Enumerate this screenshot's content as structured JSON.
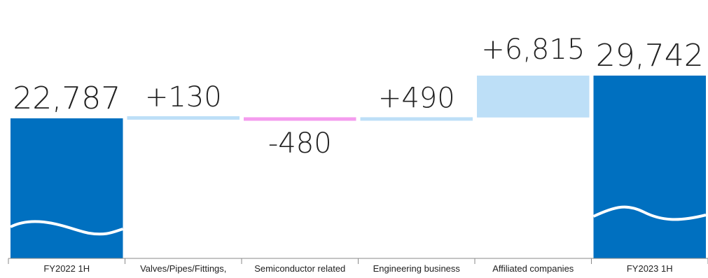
{
  "chart_data": {
    "type": "bar",
    "subtype": "waterfall",
    "title": "",
    "xlabel": "",
    "ylabel": "",
    "categories": [
      "FY2022 1H",
      "Valves/Pipes/Fittings,",
      "Semiconductor related",
      "Engineering business",
      "Affiliated companies",
      "FY2023 1H"
    ],
    "values": [
      22787,
      130,
      -480,
      490,
      6815,
      29742
    ],
    "value_labels": [
      "22,787",
      "+130",
      "-480",
      "+490",
      "+6,815",
      "29,742"
    ],
    "bar_kinds": [
      "total",
      "delta",
      "delta",
      "delta",
      "delta",
      "total"
    ],
    "colors": {
      "total": "#0070C0",
      "increase": "#BDDFF7",
      "decrease": "#F49CEE",
      "wave": "#ffffff",
      "axis": "#8a8a8a"
    },
    "grid": false,
    "legend": "none"
  }
}
